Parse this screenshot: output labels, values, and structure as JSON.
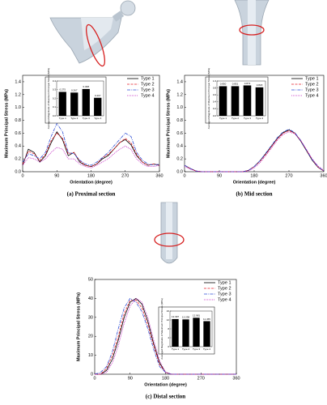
{
  "chart_data": [
    {
      "type": "line",
      "title": "(a) Proximal section",
      "xlabel": "Orientation (degree)",
      "ylabel": "Maximum Principal Stress (MPa)",
      "x": [
        0,
        15,
        30,
        45,
        60,
        75,
        90,
        105,
        120,
        135,
        150,
        165,
        180,
        195,
        210,
        225,
        240,
        255,
        270,
        285,
        300,
        315,
        330,
        345,
        360
      ],
      "xlim": [
        0,
        360
      ],
      "xticks": [
        0,
        90,
        180,
        270,
        360
      ],
      "ylim": [
        0,
        1.5
      ],
      "yticks": [
        {
          "value": 0,
          "label": "0.0"
        },
        0.2,
        0.4,
        0.6,
        0.8,
        {
          "value": 1,
          "label": "1.0"
        },
        1.2,
        1.4
      ],
      "series": [
        {
          "name": "Type 1",
          "color": "#000000",
          "values": [
            0.1,
            0.35,
            0.3,
            0.15,
            0.25,
            0.45,
            0.62,
            0.5,
            0.25,
            0.3,
            0.15,
            0.1,
            0.08,
            0.12,
            0.2,
            0.25,
            0.35,
            0.45,
            0.5,
            0.42,
            0.25,
            0.15,
            0.1,
            0.12,
            0.1
          ]
        },
        {
          "name": "Type 2",
          "color": "#e8212b",
          "values": [
            0.12,
            0.32,
            0.28,
            0.17,
            0.27,
            0.48,
            0.6,
            0.52,
            0.28,
            0.3,
            0.17,
            0.1,
            0.08,
            0.12,
            0.22,
            0.27,
            0.35,
            0.45,
            0.52,
            0.45,
            0.27,
            0.15,
            0.1,
            0.12,
            0.1
          ]
        },
        {
          "name": "Type 3",
          "color": "#2f4fd6",
          "values": [
            0.15,
            0.28,
            0.25,
            0.2,
            0.3,
            0.55,
            0.75,
            0.62,
            0.3,
            0.28,
            0.18,
            0.12,
            0.1,
            0.15,
            0.22,
            0.3,
            0.4,
            0.5,
            0.6,
            0.55,
            0.3,
            0.18,
            0.12,
            0.1,
            0.12
          ]
        },
        {
          "name": "Type 4",
          "color": "#c020c0",
          "values": [
            0.1,
            0.22,
            0.2,
            0.15,
            0.2,
            0.3,
            0.38,
            0.35,
            0.2,
            0.2,
            0.12,
            0.08,
            0.06,
            0.1,
            0.15,
            0.2,
            0.28,
            0.35,
            0.4,
            0.35,
            0.2,
            0.12,
            0.08,
            0.08,
            0.1
          ]
        }
      ]
    },
    {
      "type": "bar",
      "ylabel": "Averaged Magnitude of Maximum Principal Stress (MPa)",
      "categories": [
        "Type 1",
        "Type 2",
        "Type 3",
        "Type 4"
      ],
      "values": [
        0.275,
        0.267,
        0.308,
        0.207
      ],
      "color": "#000000",
      "ylim": [
        0,
        0.4
      ],
      "yticks": [
        {
          "value": 0,
          "label": "0.0"
        },
        0.1,
        0.2,
        0.3,
        0.4
      ]
    },
    {
      "type": "line",
      "title": "(b) Mid section",
      "xlabel": "Orientation (degree)",
      "ylabel": "Maximum Principal Stress (MPa)",
      "x": [
        0,
        15,
        30,
        45,
        60,
        75,
        90,
        105,
        120,
        135,
        150,
        165,
        180,
        195,
        210,
        225,
        240,
        255,
        270,
        285,
        300,
        315,
        330,
        345,
        360
      ],
      "xlim": [
        0,
        360
      ],
      "xticks": [
        0,
        90,
        180,
        270,
        360
      ],
      "ylim": [
        0,
        1.5
      ],
      "yticks": [
        {
          "value": 0,
          "label": "0.0"
        },
        0.2,
        0.4,
        0.6,
        0.8,
        {
          "value": 1,
          "label": "1.0"
        },
        1.2,
        1.4
      ],
      "series": [
        {
          "name": "Type 1",
          "color": "#000000",
          "values": [
            0.1,
            0.05,
            0.01,
            0,
            0,
            0,
            0,
            0,
            0,
            0,
            0,
            0.02,
            0.08,
            0.17,
            0.28,
            0.4,
            0.52,
            0.61,
            0.65,
            0.6,
            0.48,
            0.33,
            0.18,
            0.07,
            0.01
          ]
        },
        {
          "name": "Type 2",
          "color": "#e8212b",
          "values": [
            0.1,
            0.05,
            0.01,
            0,
            0,
            0,
            0,
            0,
            0,
            0,
            0,
            0.02,
            0.08,
            0.16,
            0.27,
            0.39,
            0.51,
            0.6,
            0.64,
            0.6,
            0.49,
            0.34,
            0.19,
            0.07,
            0.01
          ]
        },
        {
          "name": "Type 3",
          "color": "#2f4fd6",
          "values": [
            0.1,
            0.05,
            0.01,
            0,
            0,
            0,
            0,
            0,
            0,
            0,
            0,
            0.02,
            0.08,
            0.17,
            0.29,
            0.41,
            0.53,
            0.62,
            0.66,
            0.61,
            0.49,
            0.34,
            0.19,
            0.08,
            0.01
          ]
        },
        {
          "name": "Type 4",
          "color": "#c020c0",
          "values": [
            0.08,
            0.04,
            0.01,
            0,
            0,
            0,
            0,
            0,
            0,
            0,
            0,
            0.01,
            0.06,
            0.14,
            0.25,
            0.37,
            0.49,
            0.58,
            0.62,
            0.59,
            0.49,
            0.35,
            0.2,
            0.09,
            0.02
          ]
        }
      ]
    },
    {
      "type": "bar",
      "ylabel": "Averaged Magnitude of Maximum Principal Stress (MPa)",
      "categories": [
        "Type 1",
        "Type 2",
        "Type 3",
        "Type 4"
      ],
      "values": [
        0.85,
        0.851,
        0.873,
        0.818
      ],
      "value_labels": [
        "0.850",
        "0.851",
        "0.873",
        "0.818"
      ],
      "color": "#000000",
      "ylim": [
        0,
        1
      ],
      "yticks": [
        {
          "value": 0,
          "label": "0.0"
        },
        0.2,
        0.4,
        0.6,
        0.8,
        {
          "value": 1,
          "label": "1.0"
        }
      ]
    },
    {
      "type": "line",
      "title": "(c) Distal section",
      "xlabel": "Orientation (degree)",
      "ylabel": "Maximum Principal Stress (MPa)",
      "x": [
        0,
        15,
        30,
        45,
        60,
        75,
        90,
        105,
        120,
        135,
        150,
        165,
        180,
        195,
        210,
        225,
        240,
        255,
        270,
        285,
        300,
        315,
        330,
        345,
        360
      ],
      "xlim": [
        0,
        360
      ],
      "xticks": [
        0,
        90,
        180,
        270,
        360
      ],
      "ylim": [
        0,
        50
      ],
      "yticks": [
        0,
        10,
        20,
        30,
        40,
        50
      ],
      "series": [
        {
          "name": "Type 1",
          "color": "#000000",
          "values": [
            0,
            0,
            2,
            8,
            18,
            30,
            38,
            40,
            37,
            28,
            16,
            6,
            1,
            0,
            0,
            0,
            0,
            0,
            0,
            0,
            0,
            0,
            0,
            0,
            0
          ]
        },
        {
          "name": "Type 2",
          "color": "#e8212b",
          "values": [
            0,
            0,
            3,
            10,
            20,
            32,
            39,
            39,
            35,
            26,
            15,
            5,
            1,
            0,
            0,
            0,
            0,
            0,
            0,
            0,
            0,
            0,
            0,
            0,
            0
          ]
        },
        {
          "name": "Type 3",
          "color": "#2f4fd6",
          "values": [
            0,
            1,
            4,
            12,
            24,
            35,
            40,
            38,
            33,
            24,
            13,
            4,
            1,
            0,
            0,
            0,
            0,
            0,
            0,
            0,
            0,
            0,
            0,
            0,
            0
          ]
        },
        {
          "name": "Type 4",
          "color": "#c020c0",
          "values": [
            0,
            0,
            1,
            6,
            15,
            27,
            36,
            40,
            38,
            30,
            18,
            7,
            1,
            0,
            0,
            0,
            0,
            0,
            0,
            0,
            0,
            0,
            0,
            0,
            0
          ]
        }
      ]
    },
    {
      "type": "bar",
      "ylabel": "Averaged Magnitude of Maximum Principal Stress (MPa)",
      "categories": [
        "Type 1",
        "Type 2",
        "Type 3",
        "Type 4"
      ],
      "values": [
        12.397,
        12.238,
        12.981,
        11.455
      ],
      "color": "#000000",
      "ylim": [
        0,
        16
      ],
      "yticks": [
        0,
        4,
        8,
        12,
        16
      ]
    }
  ]
}
